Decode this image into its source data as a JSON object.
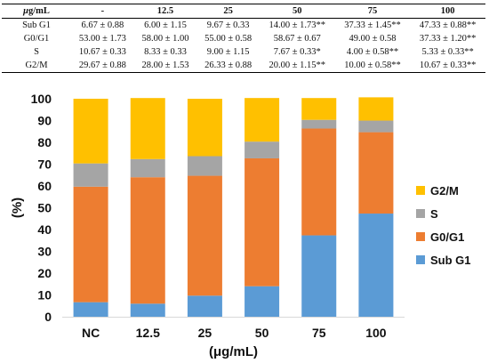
{
  "table": {
    "header_prefix_greek": "μ",
    "header_unit": "g/mL",
    "columns": [
      "-",
      "12.5",
      "25",
      "50",
      "75",
      "100"
    ],
    "rows": [
      {
        "label": "Sub G1",
        "cells": [
          "6.67 ± 0.88",
          "6.00 ± 1.15",
          "9.67 ± 0.33",
          "14.00 ± 1.73**",
          "37.33 ± 1.45**",
          "47.33 ± 0.88**"
        ]
      },
      {
        "label": "G0/G1",
        "cells": [
          "53.00 ± 1.73",
          "58.00 ± 1.00",
          "55.00 ± 0.58",
          "58.67 ± 0.67",
          "49.00 ± 0.58",
          "37.33 ± 1.20**"
        ]
      },
      {
        "label": "S",
        "cells": [
          "10.67 ± 0.33",
          "8.33 ± 0.33",
          "9.00 ± 1.15",
          "7.67 ± 0.33*",
          "4.00 ± 0.58**",
          "5.33 ± 0.33**"
        ]
      },
      {
        "label": "G2/M",
        "cells": [
          "29.67 ± 0.88",
          "28.00 ± 1.53",
          "26.33 ± 0.88",
          "20.00 ± 1.15**",
          "10.00 ± 0.58**",
          "10.67 ± 0.33**"
        ]
      }
    ]
  },
  "chart_data": {
    "type": "bar",
    "stacked": true,
    "categories": [
      "NC",
      "12.5",
      "25",
      "50",
      "75",
      "100"
    ],
    "series": [
      {
        "name": "Sub G1",
        "color": "#5B9BD5",
        "values": [
          6.67,
          6.0,
          9.67,
          14.0,
          37.33,
          47.33
        ]
      },
      {
        "name": "G0/G1",
        "color": "#ED7D31",
        "values": [
          53.0,
          58.0,
          55.0,
          58.67,
          49.0,
          37.33
        ]
      },
      {
        "name": "S",
        "color": "#A5A5A5",
        "values": [
          10.67,
          8.33,
          9.0,
          7.67,
          4.0,
          5.33
        ]
      },
      {
        "name": "G2/M",
        "color": "#FFC000",
        "values": [
          29.67,
          28.0,
          26.33,
          20.0,
          10.0,
          10.67
        ]
      }
    ],
    "ylabel": "(%)",
    "xlabel": "(μg/mL)",
    "ylim": [
      0,
      100
    ],
    "yticks": [
      "0",
      "10",
      "20",
      "30",
      "40",
      "50",
      "60",
      "70",
      "80",
      "90",
      "100"
    ],
    "legend_position": "right",
    "legend_order": [
      "G2/M",
      "S",
      "G0/G1",
      "Sub G1"
    ],
    "grid": false
  }
}
